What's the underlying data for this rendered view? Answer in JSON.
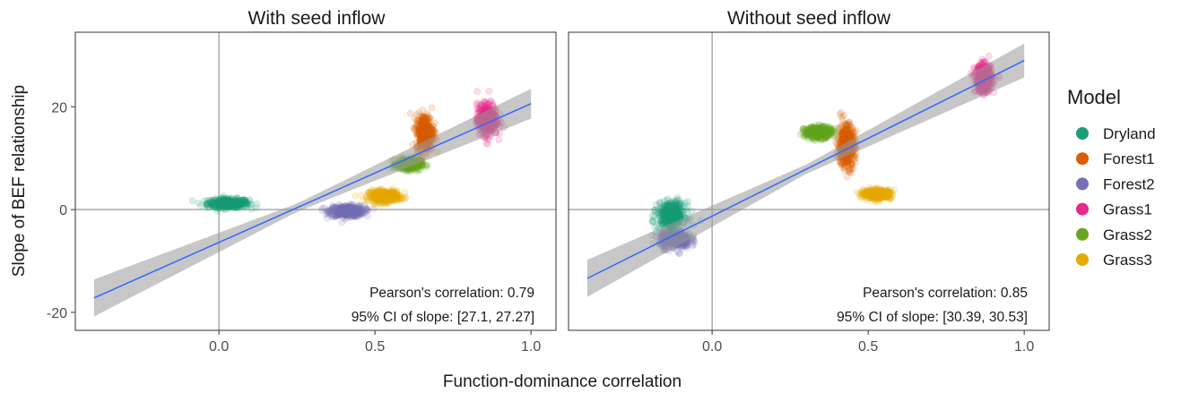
{
  "chart_data": {
    "type": "scatter",
    "xlabel": "Function-dominance correlation",
    "ylabel": "Slope of BEF relationship",
    "xlim": [
      -0.46,
      1.08
    ],
    "ylim": [
      -23.5,
      34.5
    ],
    "x_ticks": [
      0.0,
      0.5,
      1.0
    ],
    "x_tick_labels": [
      "0.0",
      "0.5",
      "1.0"
    ],
    "y_ticks": [
      -20,
      0,
      20
    ],
    "y_tick_labels": [
      "-20",
      "0",
      "20"
    ],
    "grid": false,
    "reference_lines": {
      "x": 0,
      "y": 0
    },
    "legend": {
      "title": "Model",
      "position": "right",
      "items": [
        {
          "name": "Dryland",
          "color": "#1b9e77"
        },
        {
          "name": "Forest1",
          "color": "#d95f02"
        },
        {
          "name": "Forest2",
          "color": "#7570b3"
        },
        {
          "name": "Grass1",
          "color": "#e7298a"
        },
        {
          "name": "Grass2",
          "color": "#66a61e"
        },
        {
          "name": "Grass3",
          "color": "#e6ab02"
        }
      ]
    },
    "regression_line_color": "#3366ff",
    "confidence_band_color": "#999999",
    "panels": [
      {
        "title": "With seed inflow",
        "regression": {
          "x": [
            -0.4,
            1.0
          ],
          "y": [
            -17.2,
            20.6
          ]
        },
        "band_halfwidth": {
          "x": [
            -0.4,
            0.25,
            1.0
          ],
          "hw": [
            3.6,
            0.8,
            2.9
          ]
        },
        "annotations": [
          "Pearson's correlation: 0.79",
          "95% CI of slope: [27.1, 27.27]"
        ],
        "clusters": [
          {
            "name": "Dryland",
            "cx": 0.03,
            "cy": 1.2,
            "sx": 0.06,
            "sy": 0.8
          },
          {
            "name": "Forest2",
            "cx": 0.41,
            "cy": -0.3,
            "sx": 0.05,
            "sy": 1.0
          },
          {
            "name": "Grass3",
            "cx": 0.53,
            "cy": 2.6,
            "sx": 0.045,
            "sy": 1.0
          },
          {
            "name": "Grass2",
            "cx": 0.61,
            "cy": 8.8,
            "sx": 0.035,
            "sy": 1.0
          },
          {
            "name": "Forest1",
            "cx": 0.66,
            "cy": 15.0,
            "sx": 0.025,
            "sy": 3.2
          },
          {
            "name": "Grass1",
            "cx": 0.86,
            "cy": 17.5,
            "sx": 0.03,
            "sy": 2.8
          }
        ]
      },
      {
        "title": "Without seed inflow",
        "regression": {
          "x": [
            -0.4,
            1.0
          ],
          "y": [
            -13.4,
            29.0
          ]
        },
        "band_halfwidth": {
          "x": [
            -0.4,
            0.3,
            1.0
          ],
          "hw": [
            3.6,
            0.9,
            3.3
          ]
        },
        "annotations": [
          "Pearson's correlation: 0.85",
          "95% CI of slope: [30.39, 30.53]"
        ],
        "clusters": [
          {
            "name": "Forest2",
            "cx": -0.12,
            "cy": -5.8,
            "sx": 0.045,
            "sy": 1.6
          },
          {
            "name": "Dryland",
            "cx": -0.13,
            "cy": -1.0,
            "sx": 0.04,
            "sy": 2.2
          },
          {
            "name": "Grass2",
            "cx": 0.34,
            "cy": 15.0,
            "sx": 0.04,
            "sy": 1.0
          },
          {
            "name": "Forest1",
            "cx": 0.43,
            "cy": 12.5,
            "sx": 0.025,
            "sy": 3.8
          },
          {
            "name": "Grass3",
            "cx": 0.53,
            "cy": 3.0,
            "sx": 0.04,
            "sy": 0.8
          },
          {
            "name": "Grass1",
            "cx": 0.87,
            "cy": 25.5,
            "sx": 0.025,
            "sy": 2.4
          }
        ]
      }
    ]
  }
}
